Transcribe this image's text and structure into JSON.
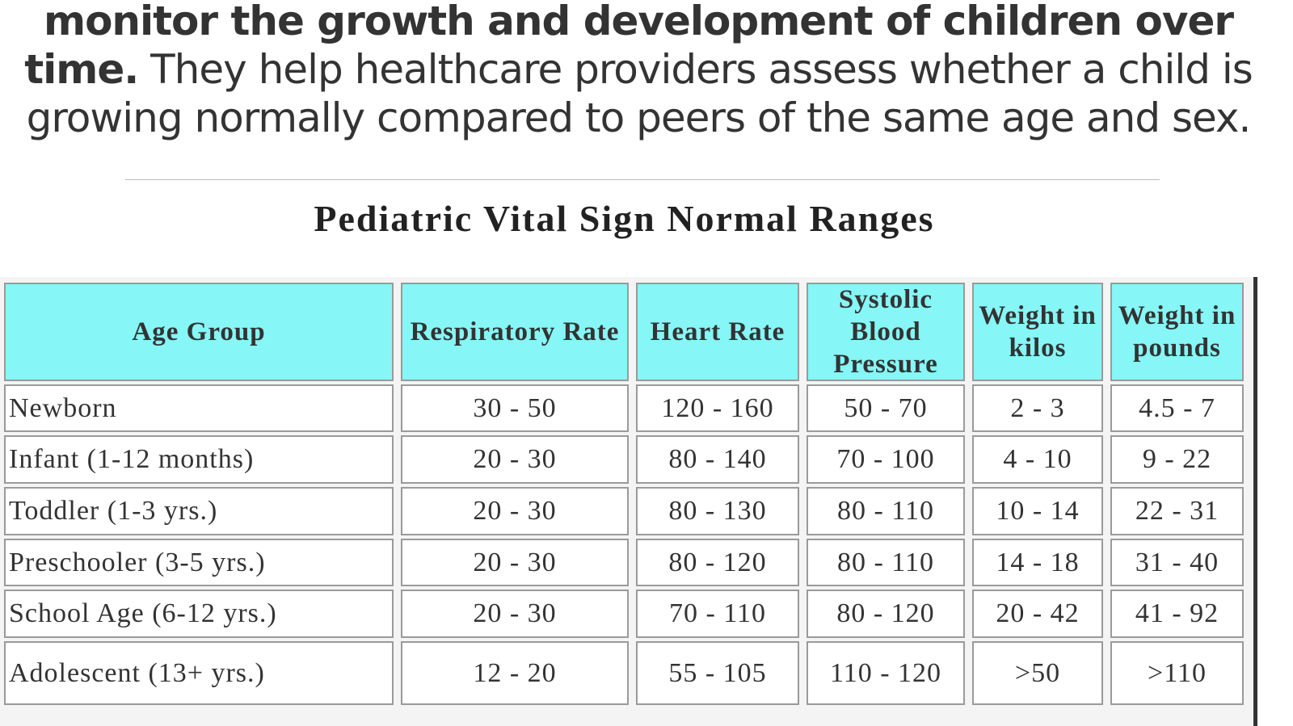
{
  "intro": {
    "bold": "monitor the growth and development of children over time.",
    "rest": "They help healthcare providers assess whether a child is growing normally compared to peers of the same age and sex."
  },
  "table": {
    "title": "Pediatric Vital Sign Normal Ranges",
    "header": [
      "Age Group",
      "Respiratory Rate",
      "Heart Rate",
      "Systolic Blood Pressure",
      "Weight in kilos",
      "Weight in pounds"
    ],
    "rows": [
      [
        "Newborn",
        "30 - 50",
        "120 - 160",
        "50 - 70",
        "2 - 3",
        "4.5 - 7"
      ],
      [
        "Infant (1-12 months)",
        "20 - 30",
        "80 - 140",
        "70 - 100",
        "4 - 10",
        "9 - 22"
      ],
      [
        "Toddler (1-3 yrs.)",
        "20 - 30",
        "80 - 130",
        "80 - 110",
        "10 - 14",
        "22 - 31"
      ],
      [
        "Preschooler (3-5 yrs.)",
        "20 - 30",
        "80 - 120",
        "80 - 110",
        "14 - 18",
        "31 - 40"
      ],
      [
        "School Age (6-12 yrs.)",
        "20 - 30",
        "70 - 110",
        "80 - 120",
        "20 - 42",
        "41 - 92"
      ],
      [
        "Adolescent (13+ yrs.)",
        "12 - 20",
        "55 - 105",
        "110 - 120",
        ">50",
        ">110"
      ]
    ]
  }
}
